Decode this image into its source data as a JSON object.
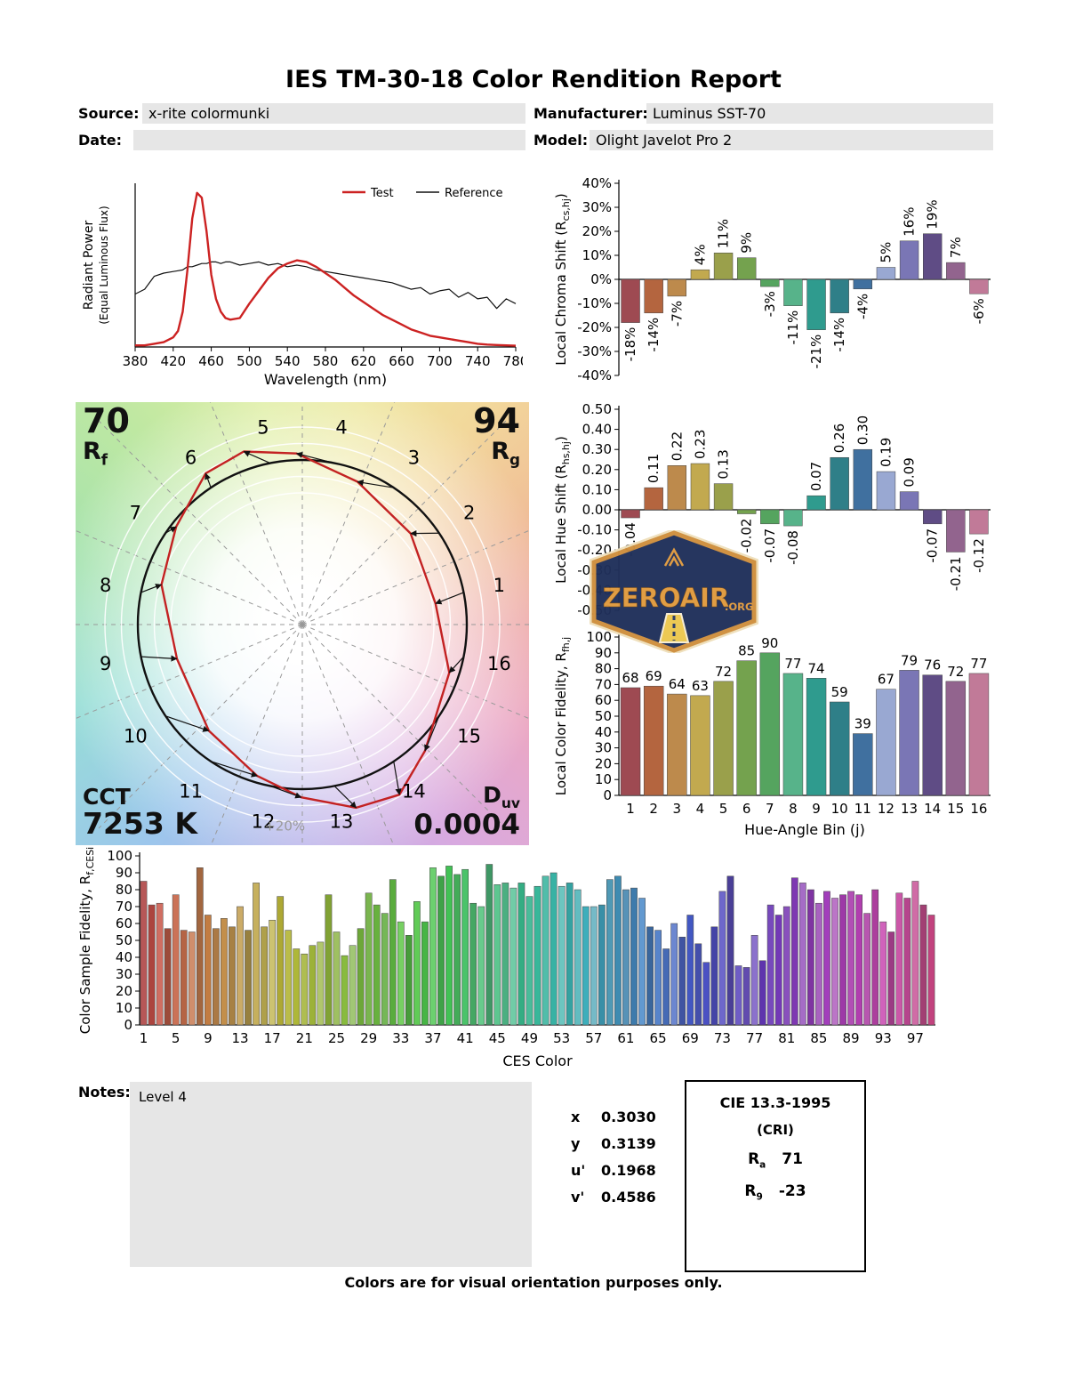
{
  "title": "IES TM-30-18 Color Rendition Report",
  "header": {
    "source_label": "Source:",
    "source_value": "x-rite colormunki",
    "manufacturer_label": "Manufacturer:",
    "manufacturer_value": "Luminus SST-70",
    "date_label": "Date:",
    "date_value": "",
    "model_label": "Model:",
    "model_value": "Olight Javelot Pro 2"
  },
  "cvg": {
    "rf_value": "70",
    "rf_sym": "R",
    "rf_sub": "f",
    "rg_value": "94",
    "rg_sym": "R",
    "rg_sub": "g",
    "cct_label": "CCT",
    "cct_value": "7253 K",
    "duv_sym": "D",
    "duv_sub": "uv",
    "duv_value": "0.0004",
    "ring_label": "+20%",
    "bins": [
      1,
      2,
      3,
      4,
      5,
      6,
      7,
      8,
      9,
      10,
      11,
      12,
      13,
      14,
      15,
      16
    ]
  },
  "hue_bin_colors": [
    "#9e4a52",
    "#b4653f",
    "#bd8a4c",
    "#c2a94f",
    "#9aa04b",
    "#74a24e",
    "#55a45f",
    "#57b38a",
    "#2f9b8e",
    "#2f7f88",
    "#40709f",
    "#99a8d2",
    "#7a76b5",
    "#5f4c85",
    "#92648e",
    "#c17a98"
  ],
  "chart_data": [
    {
      "id": "spd",
      "type": "line",
      "xlabel": "Wavelength (nm)",
      "ylabel_lines": [
        "Radiant Power",
        "(Equal Luminous Flux)"
      ],
      "xlim": [
        380,
        780
      ],
      "x_ticks": [
        380,
        420,
        460,
        500,
        540,
        580,
        620,
        660,
        700,
        740,
        780
      ],
      "legend": [
        {
          "name": "Test",
          "color": "#cc2222"
        },
        {
          "name": "Reference",
          "color": "#111111"
        }
      ],
      "x": [
        380,
        390,
        400,
        410,
        420,
        425,
        430,
        435,
        440,
        445,
        450,
        455,
        460,
        465,
        470,
        475,
        480,
        490,
        500,
        510,
        520,
        530,
        540,
        550,
        560,
        570,
        580,
        590,
        600,
        610,
        620,
        630,
        640,
        650,
        660,
        670,
        680,
        690,
        700,
        710,
        720,
        730,
        740,
        750,
        760,
        770,
        780
      ],
      "series": [
        {
          "name": "Test",
          "color": "#cc2222",
          "values": [
            0.01,
            0.01,
            0.02,
            0.03,
            0.06,
            0.1,
            0.22,
            0.48,
            0.8,
            0.96,
            0.93,
            0.72,
            0.45,
            0.3,
            0.22,
            0.18,
            0.17,
            0.18,
            0.27,
            0.35,
            0.43,
            0.49,
            0.52,
            0.54,
            0.53,
            0.5,
            0.46,
            0.42,
            0.37,
            0.32,
            0.28,
            0.24,
            0.2,
            0.17,
            0.14,
            0.11,
            0.09,
            0.07,
            0.06,
            0.05,
            0.04,
            0.03,
            0.02,
            0.015,
            0.012,
            0.01,
            0.008
          ]
        },
        {
          "name": "Reference",
          "color": "#111111",
          "values": [
            0.33,
            0.36,
            0.44,
            0.46,
            0.47,
            0.475,
            0.48,
            0.5,
            0.5,
            0.51,
            0.52,
            0.52,
            0.53,
            0.53,
            0.52,
            0.53,
            0.53,
            0.51,
            0.52,
            0.53,
            0.51,
            0.52,
            0.5,
            0.51,
            0.5,
            0.48,
            0.47,
            0.46,
            0.45,
            0.44,
            0.43,
            0.42,
            0.41,
            0.4,
            0.38,
            0.36,
            0.37,
            0.33,
            0.35,
            0.36,
            0.31,
            0.34,
            0.3,
            0.31,
            0.24,
            0.3,
            0.27
          ]
        }
      ]
    },
    {
      "id": "chroma_shift",
      "type": "bar",
      "ylabel_parts": [
        {
          "t": "Local Chroma Shift (R"
        },
        {
          "t": "cs,hj",
          "sub": true
        },
        {
          "t": ")"
        }
      ],
      "ylim": [
        -40,
        40
      ],
      "ytick": 10,
      "yfmt": "pct",
      "categories": [
        1,
        2,
        3,
        4,
        5,
        6,
        7,
        8,
        9,
        10,
        11,
        12,
        13,
        14,
        15,
        16
      ],
      "values": [
        -18,
        -14,
        -7,
        4,
        11,
        9,
        -3,
        -11,
        -21,
        -14,
        -4,
        5,
        16,
        19,
        7,
        -6
      ],
      "labels": [
        "-18%",
        "-14%",
        "-7%",
        "4%",
        "11%",
        "9%",
        "-3%",
        "-11%",
        "-21%",
        "-14%",
        "-4%",
        "5%",
        "16%",
        "19%",
        "7%",
        "-6%"
      ]
    },
    {
      "id": "hue_shift",
      "type": "bar",
      "ylabel_parts": [
        {
          "t": "Local Hue Shift (R"
        },
        {
          "t": "hs,hj",
          "sub": true
        },
        {
          "t": ")"
        }
      ],
      "ylim": [
        -0.5,
        0.5
      ],
      "ytick": 0.1,
      "yfmt": "dec2",
      "categories": [
        1,
        2,
        3,
        4,
        5,
        6,
        7,
        8,
        9,
        10,
        11,
        12,
        13,
        14,
        15,
        16
      ],
      "values": [
        -0.04,
        0.11,
        0.22,
        0.23,
        0.13,
        -0.02,
        -0.07,
        -0.08,
        0.07,
        0.26,
        0.3,
        0.19,
        0.09,
        -0.07,
        -0.21,
        -0.12
      ],
      "labels": [
        "-0.04",
        "0.11",
        "0.22",
        "0.23",
        "0.13",
        "-0.02",
        "-0.07",
        "-0.08",
        "0.07",
        "0.26",
        "0.30",
        "0.19",
        "0.09",
        "-0.07",
        "-0.21",
        "-0.12"
      ]
    },
    {
      "id": "local_fidelity",
      "type": "bar",
      "ylabel_parts": [
        {
          "t": "Local Color Fidelity, R"
        },
        {
          "t": "fh,j",
          "sub": true
        }
      ],
      "xlabel": "Hue-Angle Bin (j)",
      "ylim": [
        0,
        100
      ],
      "ytick": 10,
      "yfmt": "int",
      "categories": [
        1,
        2,
        3,
        4,
        5,
        6,
        7,
        8,
        9,
        10,
        11,
        12,
        13,
        14,
        15,
        16
      ],
      "values": [
        68,
        69,
        64,
        63,
        72,
        85,
        90,
        77,
        74,
        59,
        39,
        67,
        79,
        76,
        72,
        77
      ],
      "labels": [
        "68",
        "69",
        "64",
        "63",
        "72",
        "85",
        "90",
        "77",
        "74",
        "59",
        "39",
        "67",
        "79",
        "76",
        "72",
        "77"
      ]
    },
    {
      "id": "ces_fidelity",
      "type": "bar",
      "ylabel_parts": [
        {
          "t": "Color Sample Fidelity, R"
        },
        {
          "t": "f,CESi",
          "sub": true
        }
      ],
      "xlabel": "CES Color",
      "ylim": [
        0,
        100
      ],
      "ytick": 10,
      "yfmt": "int",
      "x_tick_start": 1,
      "x_tick_step": 4,
      "values": [
        85,
        71,
        72,
        57,
        77,
        56,
        55,
        93,
        65,
        57,
        63,
        58,
        70,
        56,
        84,
        58,
        62,
        76,
        56,
        45,
        42,
        47,
        49,
        77,
        55,
        41,
        47,
        57,
        78,
        71,
        66,
        86,
        61,
        53,
        73,
        61,
        93,
        88,
        94,
        89,
        92,
        72,
        70,
        95,
        83,
        84,
        81,
        84,
        76,
        82,
        88,
        90,
        82,
        84,
        80,
        70,
        70,
        71,
        86,
        88,
        80,
        81,
        75,
        58,
        56,
        45,
        60,
        52,
        65,
        48,
        37,
        58,
        79,
        88,
        35,
        34,
        53,
        38,
        71,
        65,
        70,
        87,
        84,
        80,
        72,
        79,
        75,
        77,
        79,
        77,
        66,
        80,
        61,
        55,
        78,
        75,
        85,
        71,
        65
      ]
    }
  ],
  "notes": {
    "label": "Notes:",
    "value": "Level 4"
  },
  "chromaticity": {
    "rows": [
      {
        "label": "x",
        "value": "0.3030"
      },
      {
        "label": "y",
        "value": "0.3139"
      },
      {
        "label": "u'",
        "value": "0.1968"
      },
      {
        "label": "v'",
        "value": "0.4586"
      }
    ]
  },
  "cri_box": {
    "title": "CIE 13.3-1995",
    "subtitle": "(CRI)",
    "ra_sym": "R",
    "ra_sub": "a",
    "ra_value": "71",
    "r9_sym": "R",
    "r9_sub": "9",
    "r9_value": "-23"
  },
  "footer": "Colors are for visual orientation purposes only.",
  "watermark": {
    "text": "ZEROAIR",
    "suffix": ".ORG"
  }
}
